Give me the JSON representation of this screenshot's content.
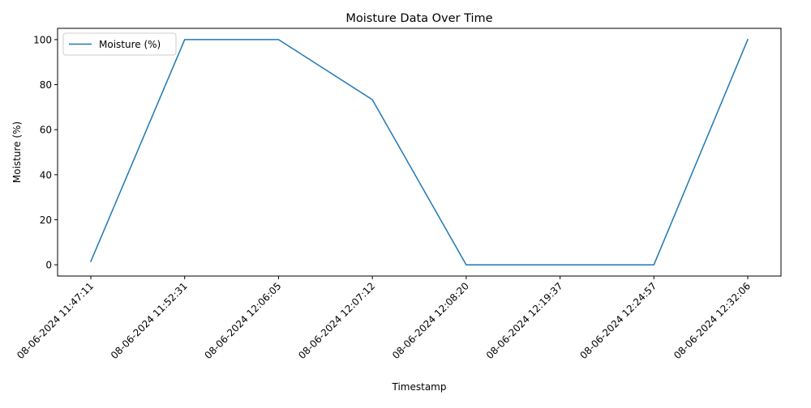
{
  "chart_data": {
    "type": "line",
    "title": "Moisture Data Over Time",
    "xlabel": "Timestamp",
    "ylabel": "Moisture (%)",
    "x": [
      "08-06-2024 11:47:11",
      "08-06-2024 11:52:31",
      "08-06-2024 12:06:05",
      "08-06-2024 12:07:12",
      "08-06-2024 12:08:20",
      "08-06-2024 12:19:37",
      "08-06-2024 12:24:57",
      "08-06-2024 12:32:06"
    ],
    "series": [
      {
        "name": "Moisture (%)",
        "values": [
          1.5,
          100,
          100,
          73.3,
          0,
          0,
          0,
          100
        ],
        "color": "#1f77b4"
      }
    ],
    "yticks": [
      0,
      20,
      40,
      60,
      80,
      100
    ],
    "ylim": [
      -5,
      105
    ],
    "grid": false,
    "legend_position": "upper left"
  }
}
